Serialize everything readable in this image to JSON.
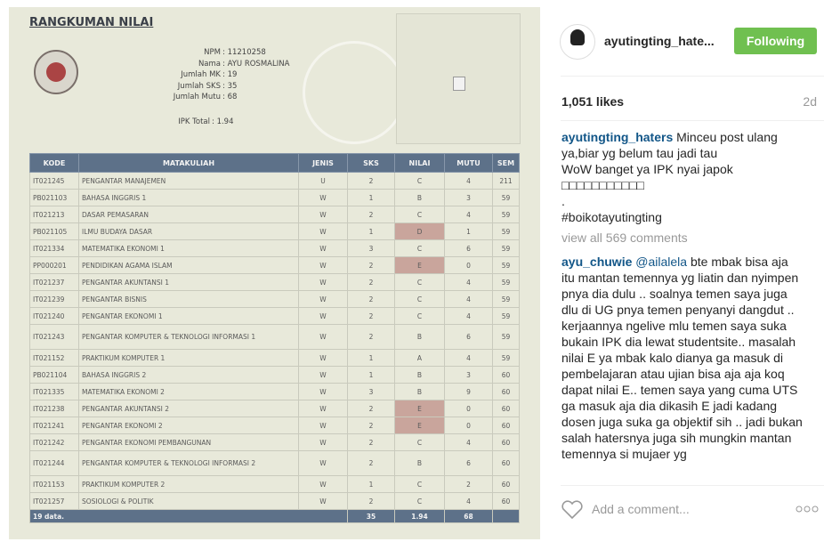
{
  "post_image": {
    "title": "RANGKUMAN NILAI",
    "info": [
      {
        "label": "NPM",
        "value": ": 11210258"
      },
      {
        "label": "Nama",
        "value": ": AYU ROSMALINA"
      },
      {
        "label": "Jumlah MK",
        "value": ": 19"
      },
      {
        "label": "Jumlah SKS",
        "value": ": 35"
      },
      {
        "label": "Jumlah Mutu",
        "value": ": 68"
      },
      {
        "label": "IPK Total",
        "value": ": 1.94"
      }
    ],
    "table": {
      "headers": [
        "KODE",
        "MATAKULIAH",
        "JENIS",
        "SKS",
        "NILAI",
        "MUTU",
        "SEM"
      ],
      "rows": [
        [
          "IT021245",
          "PENGANTAR MANAJEMEN",
          "U",
          "2",
          "C",
          "4",
          "211"
        ],
        [
          "PB021103",
          "BAHASA INGGRIS 1",
          "W",
          "1",
          "B",
          "3",
          "59"
        ],
        [
          "IT021213",
          "DASAR PEMASARAN",
          "W",
          "2",
          "C",
          "4",
          "59"
        ],
        [
          "PB021105",
          "ILMU BUDAYA DASAR",
          "W",
          "1",
          "D",
          "1",
          "59"
        ],
        [
          "IT021334",
          "MATEMATIKA EKONOMI 1",
          "W",
          "3",
          "C",
          "6",
          "59"
        ],
        [
          "PP000201",
          "PENDIDIKAN AGAMA ISLAM",
          "W",
          "2",
          "E",
          "0",
          "59"
        ],
        [
          "IT021237",
          "PENGANTAR AKUNTANSI 1",
          "W",
          "2",
          "C",
          "4",
          "59"
        ],
        [
          "IT021239",
          "PENGANTAR BISNIS",
          "W",
          "2",
          "C",
          "4",
          "59"
        ],
        [
          "IT021240",
          "PENGANTAR EKONOMI 1",
          "W",
          "2",
          "C",
          "4",
          "59"
        ],
        [
          "IT021243",
          "PENGANTAR KOMPUTER & TEKNOLOGI INFORMASI 1",
          "W",
          "2",
          "B",
          "6",
          "59"
        ],
        [
          "IT021152",
          "PRAKTIKUM KOMPUTER 1",
          "W",
          "1",
          "A",
          "4",
          "59"
        ],
        [
          "PB021104",
          "BAHASA INGGRIS 2",
          "W",
          "1",
          "B",
          "3",
          "60"
        ],
        [
          "IT021335",
          "MATEMATIKA EKONOMI 2",
          "W",
          "3",
          "B",
          "9",
          "60"
        ],
        [
          "IT021238",
          "PENGANTAR AKUNTANSI 2",
          "W",
          "2",
          "E",
          "0",
          "60"
        ],
        [
          "IT021241",
          "PENGANTAR EKONOMI 2",
          "W",
          "2",
          "E",
          "0",
          "60"
        ],
        [
          "IT021242",
          "PENGANTAR EKONOMI PEMBANGUNAN",
          "W",
          "2",
          "C",
          "4",
          "60"
        ],
        [
          "IT021244",
          "PENGANTAR KOMPUTER & TEKNOLOGI INFORMASI 2",
          "W",
          "2",
          "B",
          "6",
          "60"
        ],
        [
          "IT021153",
          "PRAKTIKUM KOMPUTER 2",
          "W",
          "1",
          "C",
          "2",
          "60"
        ],
        [
          "IT021257",
          "SOSIOLOGI & POLITIK",
          "W",
          "2",
          "C",
          "4",
          "60"
        ]
      ],
      "footer": [
        "19 data.",
        "35",
        "1.94",
        "68"
      ]
    }
  },
  "header": {
    "username": "ayutingting_hate...",
    "button": "Following"
  },
  "likes": "1,051 likes",
  "time": "2d",
  "caption": {
    "username": "ayutingting_haters",
    "text": "Minceu post ulang ya,biar yg belum tau jadi tau\nWoW banget ya IPK nyai japok\n□□□□□□□□□□□\n.\n#boikotayutingting"
  },
  "view_comments": "view all 569 comments",
  "comments": [
    {
      "username": "ayu_chuwie",
      "mention": "@ailalela",
      "text": "bte mbak bisa aja itu mantan temennya yg liatin dan nyimpen pnya dia dulu .. soalnya temen saya juga dlu di UG pnya temen penyanyi dangdut .. kerjaannya ngelive mlu temen saya suka bukain IPK dia lewat studentsite.. masalah nilai E ya mbak kalo dianya ga masuk di pembelajaran atau ujian bisa aja aja koq dapat nilai E.. temen saya yang cuma UTS ga masuk aja dia dikasih E jadi kadang dosen juga suka ga objektif sih .. jadi bukan salah hatersnya juga sih mungkin mantan temennya si mujaer yg"
    }
  ],
  "add_comment": "Add a comment..."
}
